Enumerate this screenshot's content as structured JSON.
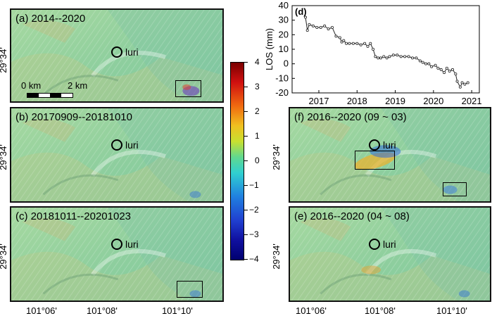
{
  "maps": [
    {
      "key": "a",
      "title": "(a)   2014--2020"
    },
    {
      "key": "b",
      "title": "(b)  20170909--20181010"
    },
    {
      "key": "c",
      "title": "(c)  20181011--20201023"
    },
    {
      "key": "f",
      "title": "(f)   2016--2020 (09 ~ 03)"
    },
    {
      "key": "e",
      "title": "(e)   2016--2020 (04 ~ 08)"
    }
  ],
  "place_label": "luri",
  "lat_label": "29°34'",
  "lon_labels": [
    "101°06'",
    "101°08'",
    "101°10'"
  ],
  "scale": {
    "zero": "0 km",
    "two": "2 km"
  },
  "colorbar": {
    "ticks": [
      "4",
      "3",
      "2",
      "1",
      "0",
      "−1",
      "−2",
      "−3",
      "−4"
    ],
    "min": -4,
    "max": 4
  },
  "colors": {
    "map_green": "#8fcf9e",
    "box": "#000000",
    "line": "#222222"
  },
  "chart_data": {
    "type": "line",
    "panel_label": "(d)",
    "ylabel": "LOS (mm)",
    "ylim": [
      -20,
      40
    ],
    "xlim": [
      2016.3,
      2021.2
    ],
    "yticks": [
      40,
      30,
      20,
      10,
      0,
      -10,
      -20
    ],
    "xticks": [
      2017,
      2018,
      2019,
      2020,
      2021
    ],
    "grid": false,
    "series": [
      {
        "x": [
          2016.65,
          2016.7,
          2016.75,
          2016.85,
          2016.95,
          2017.05,
          2017.15,
          2017.25,
          2017.35,
          2017.45,
          2017.55,
          2017.6,
          2017.65,
          2017.72,
          2017.8,
          2017.9,
          2018.0,
          2018.1,
          2018.2,
          2018.28,
          2018.35,
          2018.42,
          2018.48,
          2018.55,
          2018.62,
          2018.7,
          2018.78,
          2018.85,
          2018.95,
          2019.05,
          2019.15,
          2019.25,
          2019.35,
          2019.45,
          2019.55,
          2019.65,
          2019.72,
          2019.8,
          2019.88,
          2019.95,
          2020.05,
          2020.12,
          2020.2,
          2020.28,
          2020.35,
          2020.42,
          2020.5,
          2020.58,
          2020.62,
          2020.7,
          2020.75,
          2020.82,
          2020.9
        ],
        "y": [
          32,
          23,
          27,
          26,
          25,
          25,
          26,
          24,
          25,
          19,
          18,
          15,
          16,
          14,
          14,
          14,
          14,
          13,
          14,
          12,
          14,
          10,
          5,
          4,
          4,
          5,
          4,
          5,
          6,
          6,
          5,
          5,
          5,
          4,
          4,
          2,
          1,
          0,
          0,
          -2,
          -1,
          -3,
          -4,
          -6,
          -3,
          -5,
          -4,
          -7,
          -12,
          -16,
          -13,
          -14,
          -13
        ]
      }
    ]
  }
}
